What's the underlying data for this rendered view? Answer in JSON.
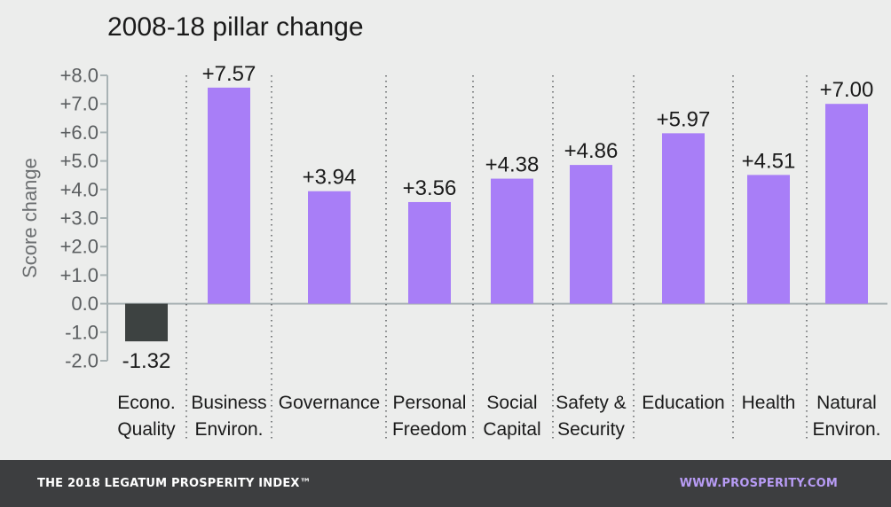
{
  "chart_data": {
    "type": "bar",
    "title": "2008-18 pillar change",
    "xlabel": "",
    "ylabel": "Score change",
    "ylim": [
      -2.0,
      8.0
    ],
    "yticks": [
      "-2.0",
      "-1.0",
      "0.0",
      "+1.0",
      "+2.0",
      "+3.0",
      "+4.0",
      "+5.0",
      "+6.0",
      "+7.0",
      "+8.0"
    ],
    "grid": false,
    "categories": [
      [
        "Econo.",
        "Quality"
      ],
      [
        "Business",
        "Environ."
      ],
      [
        "Governance"
      ],
      [
        "Personal",
        "Freedom"
      ],
      [
        "Social",
        "Capital"
      ],
      [
        "Safety &",
        "Security"
      ],
      [
        "Education"
      ],
      [
        "Health"
      ],
      [
        "Natural",
        "Environ."
      ]
    ],
    "values": [
      -1.32,
      7.57,
      3.94,
      3.56,
      4.38,
      4.86,
      5.97,
      4.51,
      7.0
    ],
    "data_labels": [
      "-1.32",
      "+7.57",
      "+3.94",
      "+3.56",
      "+4.38",
      "+4.86",
      "+5.97",
      "+4.51",
      "+7.00"
    ],
    "colors": {
      "positive": "#a87ef7",
      "negative": "#3d4241",
      "axis": "#a8b2b4",
      "tick_text": "#5b5e60",
      "text": "#1a1a1a"
    }
  },
  "footer": {
    "left": "THE 2018 LEGATUM PROSPERITY INDEX™",
    "right": "WWW.PROSPERITY.COM"
  }
}
